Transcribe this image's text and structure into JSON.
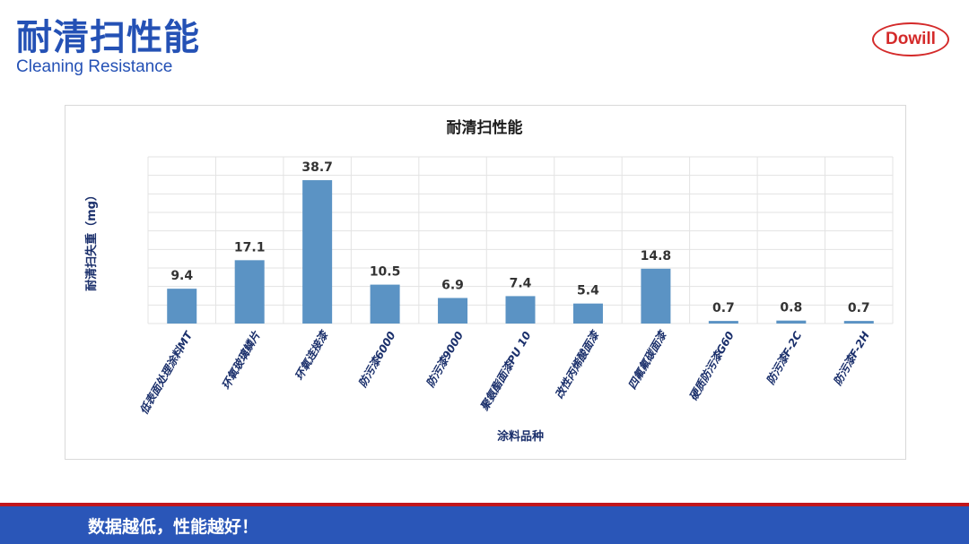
{
  "header": {
    "title_cn": "耐清扫性能",
    "title_en": "Cleaning Resistance",
    "logo_text": "Dowill"
  },
  "footer": {
    "text": "数据越低，性能越好！"
  },
  "colors": {
    "bar": "#5b93c4",
    "brand_blue": "#2a56b8",
    "brand_red": "#c0161c"
  },
  "chart_data": {
    "type": "bar",
    "title": "耐清扫性能",
    "xlabel": "涂料品种",
    "ylabel": "耐清扫失重（mg）",
    "categories": [
      "低表面处理涂料MT",
      "环氧玻璃鳞片",
      "环氧连接漆",
      "防污漆6000",
      "防污漆9000",
      "聚氨酯面漆PU 10",
      "改性丙烯酸面漆",
      "四氟氟碳面漆",
      "硬质防污漆G60",
      "防污漆F-2C",
      "防污漆F-2H"
    ],
    "values": [
      9.4,
      17.1,
      38.7,
      10.5,
      6.9,
      7.4,
      5.4,
      14.8,
      0.7,
      0.8,
      0.7
    ],
    "data_labels": [
      "9.4",
      "17.1",
      "38.7",
      "10.5",
      "6.9",
      "7.4",
      "5.4",
      "14.8",
      "0.7",
      "0.8",
      "0.7"
    ],
    "ylim": [
      0,
      45
    ],
    "grid": true,
    "legend": "none"
  }
}
